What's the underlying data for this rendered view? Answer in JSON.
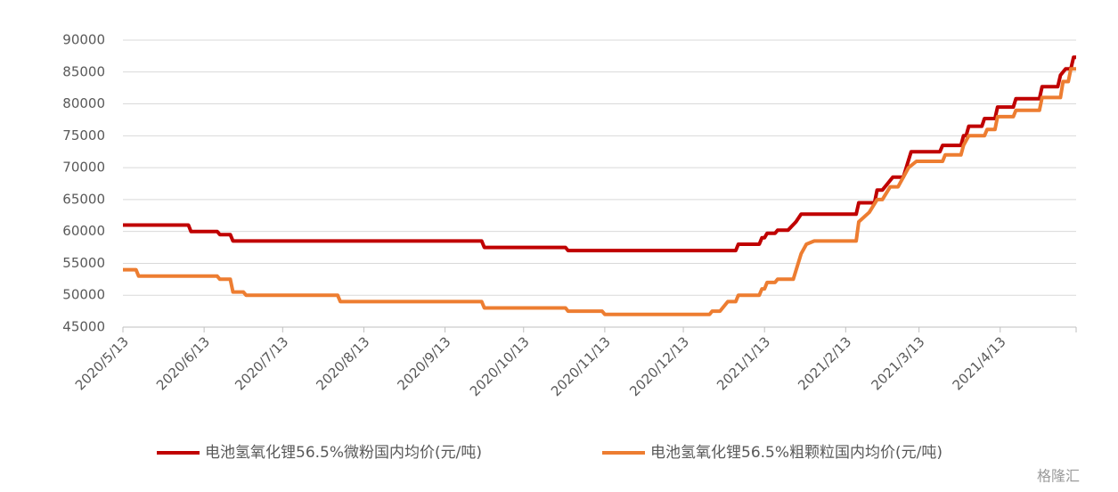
{
  "chart_data": {
    "type": "line",
    "xlim": [
      "2020/5/13",
      "2021/5/12"
    ],
    "xticks": [
      "2020/5/13",
      "2020/6/13",
      "2020/7/13",
      "2020/8/13",
      "2020/9/13",
      "2020/10/13",
      "2020/11/13",
      "2020/12/13",
      "2021/1/13",
      "2021/2/13",
      "2021/3/13",
      "2021/4/13"
    ],
    "ylim": [
      45000,
      90000
    ],
    "yticks": [
      45000,
      50000,
      55000,
      60000,
      65000,
      70000,
      75000,
      80000,
      85000,
      90000
    ],
    "grid": true,
    "legend": "bottom",
    "watermark": "格隆汇",
    "series": [
      {
        "name": "电池氢氧化锂56.5%微粉国内均价(元/吨)",
        "color": "#c00000",
        "x": [
          "2020/5/13",
          "2020/6/7",
          "2020/6/8",
          "2020/6/18",
          "2020/6/19",
          "2020/6/23",
          "2020/6/24",
          "2020/9/27",
          "2020/9/28",
          "2020/10/29",
          "2020/10/30",
          "2021/1/2",
          "2021/1/3",
          "2021/1/11",
          "2021/1/12",
          "2021/1/13",
          "2021/1/14",
          "2021/1/17",
          "2021/1/18",
          "2021/1/22",
          "2021/1/25",
          "2021/1/27",
          "2021/2/17",
          "2021/2/18",
          "2021/2/24",
          "2021/2/25",
          "2021/2/27",
          "2021/3/1",
          "2021/3/3",
          "2021/3/7",
          "2021/3/10",
          "2021/3/21",
          "2021/3/22",
          "2021/3/29",
          "2021/3/30",
          "2021/3/31",
          "2021/4/1",
          "2021/4/6",
          "2021/4/7",
          "2021/4/11",
          "2021/4/12",
          "2021/4/18",
          "2021/4/19",
          "2021/4/28",
          "2021/4/29",
          "2021/5/5",
          "2021/5/6",
          "2021/5/8",
          "2021/5/10",
          "2021/5/11",
          "2021/5/12"
        ],
        "values": [
          61000,
          61000,
          60000,
          60000,
          59500,
          59500,
          58500,
          58500,
          57500,
          57500,
          57000,
          57000,
          58000,
          58000,
          59000,
          59000,
          59700,
          59700,
          60200,
          60200,
          61500,
          62700,
          62700,
          64500,
          64500,
          66500,
          66500,
          67500,
          68500,
          68500,
          72500,
          72500,
          73500,
          73500,
          75000,
          75000,
          76500,
          76500,
          77700,
          77700,
          79500,
          79500,
          80800,
          80800,
          82700,
          82700,
          84500,
          85500,
          85500,
          87300,
          87300
        ]
      },
      {
        "name": "电池氢氧化锂56.5%粗颗粒国内均价(元/吨)",
        "color": "#ed7d31",
        "x": [
          "2020/5/13",
          "2020/5/18",
          "2020/5/19",
          "2020/6/18",
          "2020/6/19",
          "2020/6/23",
          "2020/6/24",
          "2020/6/28",
          "2020/6/29",
          "2020/8/3",
          "2020/8/4",
          "2020/9/27",
          "2020/9/28",
          "2020/10/29",
          "2020/10/30",
          "2020/11/12",
          "2020/11/13",
          "2020/12/23",
          "2020/12/24",
          "2020/12/27",
          "2020/12/30",
          "2021/1/2",
          "2021/1/3",
          "2021/1/11",
          "2021/1/12",
          "2021/1/13",
          "2021/1/14",
          "2021/1/17",
          "2021/1/18",
          "2021/1/24",
          "2021/1/27",
          "2021/1/29",
          "2021/2/1",
          "2021/2/17",
          "2021/2/18",
          "2021/2/22",
          "2021/2/25",
          "2021/2/27",
          "2021/3/2",
          "2021/3/5",
          "2021/3/9",
          "2021/3/12",
          "2021/3/22",
          "2021/3/23",
          "2021/3/29",
          "2021/3/30",
          "2021/4/1",
          "2021/4/7",
          "2021/4/8",
          "2021/4/11",
          "2021/4/12",
          "2021/4/18",
          "2021/4/19",
          "2021/4/28",
          "2021/4/29",
          "2021/5/6",
          "2021/5/7",
          "2021/5/9",
          "2021/5/10",
          "2021/5/12"
        ],
        "values": [
          54000,
          54000,
          53000,
          53000,
          52500,
          52500,
          50500,
          50500,
          50000,
          50000,
          49000,
          49000,
          48000,
          48000,
          47500,
          47500,
          47000,
          47000,
          47500,
          47500,
          49000,
          49000,
          50000,
          50000,
          51000,
          51000,
          52000,
          52000,
          52500,
          52500,
          56500,
          58000,
          58500,
          58500,
          61500,
          63000,
          65000,
          65000,
          67000,
          67000,
          70000,
          71000,
          71000,
          72000,
          72000,
          73500,
          75000,
          75000,
          76000,
          76000,
          78000,
          78000,
          79000,
          79000,
          81000,
          81000,
          83500,
          83500,
          85500,
          85500
        ]
      }
    ]
  }
}
